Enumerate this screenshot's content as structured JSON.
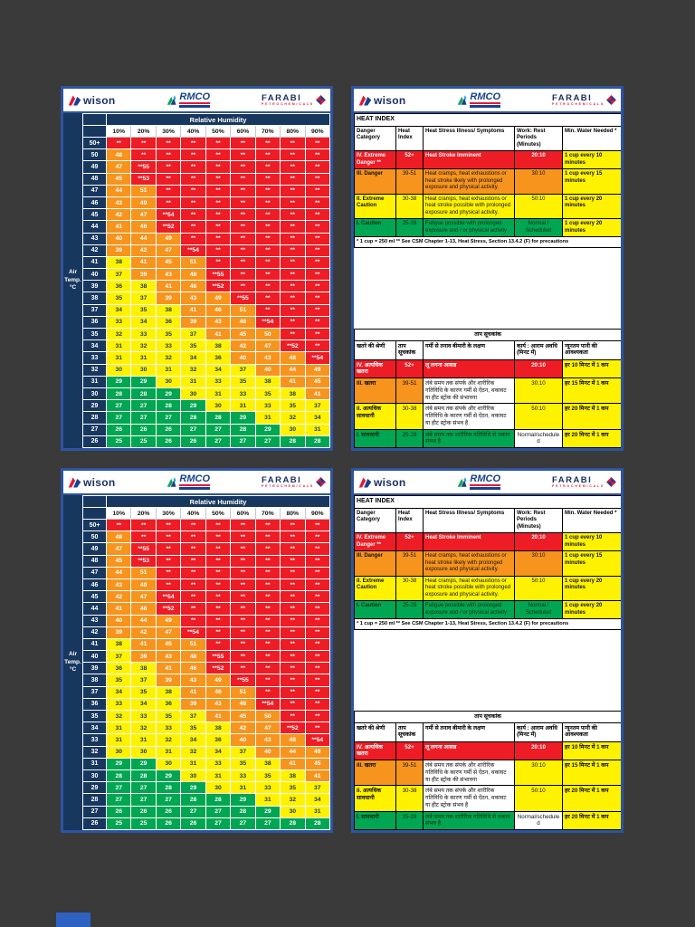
{
  "page": {
    "background": "#3a3a3a",
    "panel_border": "#2e54a1",
    "next_page_edge_color": "#2d62c1"
  },
  "logos": {
    "wison": "wison",
    "rmco": "RMCO",
    "farabi": "FARABI",
    "farabi_sub": "PETROCHEMICALS"
  },
  "chart": {
    "title": "Relative Humidity",
    "axis_label": "Air Temp. °C",
    "humidity": [
      "10%",
      "20%",
      "30%",
      "40%",
      "50%",
      "60%",
      "70%",
      "80%",
      "90%"
    ],
    "rows": [
      {
        "t": "50+",
        "c": [
          "**",
          "**",
          "**",
          "**",
          "**",
          "**",
          "**",
          "**",
          "**"
        ]
      },
      {
        "t": "50",
        "c": [
          "48",
          "**",
          "**",
          "**",
          "**",
          "**",
          "**",
          "**",
          "**"
        ]
      },
      {
        "t": "49",
        "c": [
          "47",
          "**55",
          "**",
          "**",
          "**",
          "**",
          "**",
          "**",
          "**"
        ]
      },
      {
        "t": "48",
        "c": [
          "45",
          "**53",
          "**",
          "**",
          "**",
          "**",
          "**",
          "**",
          "**"
        ]
      },
      {
        "t": "47",
        "c": [
          "44",
          "51",
          "**",
          "**",
          "**",
          "**",
          "**",
          "**",
          "**"
        ]
      },
      {
        "t": "46",
        "c": [
          "43",
          "49",
          "**",
          "**",
          "**",
          "**",
          "**",
          "**",
          "**"
        ]
      },
      {
        "t": "45",
        "c": [
          "42",
          "47",
          "**54",
          "**",
          "**",
          "**",
          "**",
          "**",
          "**"
        ]
      },
      {
        "t": "44",
        "c": [
          "41",
          "46",
          "**52",
          "**",
          "**",
          "**",
          "**",
          "**",
          "**"
        ]
      },
      {
        "t": "43",
        "c": [
          "40",
          "44",
          "49",
          "**",
          "**",
          "**",
          "**",
          "**",
          "**"
        ]
      },
      {
        "t": "42",
        "c": [
          "39",
          "42",
          "47",
          "**54",
          "**",
          "**",
          "**",
          "**",
          "**"
        ]
      },
      {
        "t": "41",
        "c": [
          "38",
          "41",
          "45",
          "51",
          "**",
          "**",
          "**",
          "**",
          "**"
        ]
      },
      {
        "t": "40",
        "c": [
          "37",
          "39",
          "43",
          "48",
          "**55",
          "**",
          "**",
          "**",
          "**"
        ]
      },
      {
        "t": "39",
        "c": [
          "36",
          "38",
          "41",
          "46",
          "**52",
          "**",
          "**",
          "**",
          "**"
        ]
      },
      {
        "t": "38",
        "c": [
          "35",
          "37",
          "39",
          "43",
          "49",
          "**55",
          "**",
          "**",
          "**"
        ]
      },
      {
        "t": "37",
        "c": [
          "34",
          "35",
          "38",
          "41",
          "46",
          "51",
          "**",
          "**",
          "**"
        ]
      },
      {
        "t": "36",
        "c": [
          "33",
          "34",
          "36",
          "39",
          "43",
          "48",
          "**54",
          "**",
          "**"
        ]
      },
      {
        "t": "35",
        "c": [
          "32",
          "33",
          "35",
          "37",
          "41",
          "45",
          "50",
          "**",
          "**"
        ]
      },
      {
        "t": "34",
        "c": [
          "31",
          "32",
          "33",
          "35",
          "38",
          "42",
          "47",
          "**52",
          "**"
        ]
      },
      {
        "t": "33",
        "c": [
          "31",
          "31",
          "32",
          "34",
          "36",
          "40",
          "43",
          "48",
          "**54"
        ]
      },
      {
        "t": "32",
        "c": [
          "30",
          "30",
          "31",
          "32",
          "34",
          "37",
          "40",
          "44",
          "49"
        ]
      },
      {
        "t": "31",
        "c": [
          "29",
          "29",
          "30",
          "31",
          "33",
          "35",
          "38",
          "41",
          "45"
        ]
      },
      {
        "t": "30",
        "c": [
          "28",
          "28",
          "29",
          "30",
          "31",
          "33",
          "35",
          "38",
          "41"
        ]
      },
      {
        "t": "29",
        "c": [
          "27",
          "27",
          "28",
          "29",
          "30",
          "31",
          "33",
          "35",
          "37"
        ]
      },
      {
        "t": "28",
        "c": [
          "27",
          "27",
          "27",
          "28",
          "28",
          "29",
          "31",
          "32",
          "34"
        ]
      },
      {
        "t": "27",
        "c": [
          "26",
          "26",
          "26",
          "27",
          "27",
          "28",
          "29",
          "30",
          "31"
        ]
      },
      {
        "t": "26",
        "c": [
          "25",
          "25",
          "26",
          "26",
          "27",
          "27",
          "27",
          "28",
          "28"
        ]
      }
    ]
  },
  "heat_table": {
    "title": "HEAT INDEX",
    "headers": [
      "Danger Category",
      "Heat Index",
      "Heat Stress Illness/ Symptoms",
      "Work: Rest Periods (Minutes)",
      "Min. Water Needed *"
    ],
    "rows": [
      {
        "category": "IV. Extreme Danger **",
        "index": "52+",
        "symptoms": "Heat Stroke Imminent",
        "work": "20:10",
        "water": "1 cup every 10 minutes",
        "level": "red"
      },
      {
        "category": "III. Danger",
        "index": "39-51",
        "symptoms": "Heat cramps, heat exhaustions or heat stroke likely with prolonged exposure and physical activity.",
        "work": "30:10",
        "water": "1 cup every 15 minutes",
        "level": "orange"
      },
      {
        "category": "II. Extreme Caution",
        "index": "30-38",
        "symptoms": "Heat cramps, heat exhaustions or heat stroke possible with prolonged exposure and physical activity.",
        "work": "50:10",
        "water": "1 cup every 20 minutes",
        "level": "yellow"
      },
      {
        "category": "I. Caution",
        "index": "25-29",
        "symptoms": "Fatigue possible with prolonged exposure and / or physical activity",
        "work": "Normal / Scheduled",
        "water": "1 cup every 20 minutes",
        "level": "green"
      }
    ],
    "footnote": "* 1 cup = 250 ml ** See CSM Chapter 1-13, Heat Stress, Section 13.4.2 (F) for precautions"
  },
  "hindi_table": {
    "title": "ताप सूचकांक",
    "headers": [
      "खतरे की श्रेणी",
      "ताप सूचकांक",
      "गर्मी से तनाव बीमारी के लक्षण",
      "कार्य : आराम अवधि (मिनट में)",
      "न्यूनतम पानी की आवश्यकता"
    ],
    "rows": [
      {
        "category": "IV. अत्यधिक खतरा",
        "index": "52+",
        "symptoms": "लू लगना आसन्न",
        "work": "20:10",
        "water": "हर 10 मिनट में 1 कप",
        "colors": {
          "category": "red",
          "index": "red",
          "symptoms": "red",
          "work": "red",
          "water": "yellow"
        }
      },
      {
        "category": "III. खतरा",
        "index": "39-51",
        "symptoms": "लंबे समय तक संपर्क और शारीरिक गतिविधि के कारण गर्मी से ऐंठन, थकावट या हीट स्ट्रोक की संभावना",
        "work": "30:10",
        "water": "हर 15 मिनट में 1 कप",
        "colors": {
          "category": "orange",
          "index": "orange",
          "symptoms": "white",
          "work": "yellow",
          "water": "yellow"
        }
      },
      {
        "category": "II. अत्यधिक सावधानी",
        "index": "30-38",
        "symptoms": "लंबे समय तक संपर्क और शारीरिक गतिविधि के कारण गर्मी से ऐंठन, थकावट या हीट स्ट्रोक संभव है",
        "work": "50:10",
        "water": "हर 20 मिनट में 1 कप",
        "colors": {
          "category": "yellow",
          "index": "yellow",
          "symptoms": "white",
          "work": "yellow",
          "water": "yellow"
        }
      },
      {
        "category": "I. सावधानी",
        "index": "25-29",
        "symptoms": "लंबे समय तक शारीरिक गतिविधि से थकान संभव है",
        "work": "Normal/scheduled",
        "water": "हर 20 मिनट में 1 कप",
        "colors": {
          "category": "green",
          "index": "green",
          "symptoms": "green",
          "work": "white",
          "water": "yellow"
        }
      }
    ]
  }
}
